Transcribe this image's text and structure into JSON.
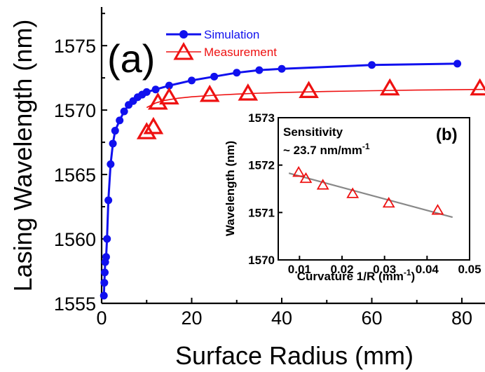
{
  "figure": {
    "panel_label": "(a)",
    "inset_panel_label": "(b)",
    "inset_annotation_line1": "Sensitivity",
    "inset_annotation_line2": "~ 23.7 nm/mm",
    "inset_annotation_sup": "-1",
    "inset_xlabel_main": "Curvature 1/R (mm",
    "inset_xlabel_sup": "-1",
    "inset_xlabel_end": ")"
  },
  "colors": {
    "simulation": "#1010ee",
    "measurement": "#ee1111",
    "fit": "#888888"
  },
  "chart_data": [
    {
      "type": "line",
      "xlabel": "Surface Radius (mm)",
      "ylabel": "Lasing Wavelength (nm)",
      "xlim": [
        0,
        90
      ],
      "ylim": [
        1555,
        1578
      ],
      "xticks": [
        "0",
        "20",
        "40",
        "60",
        "80"
      ],
      "xtick_values": [
        0,
        20,
        40,
        60,
        80
      ],
      "yticks": [
        "1555",
        "1560",
        "1565",
        "1570",
        "1575"
      ],
      "ytick_values": [
        1555,
        1560,
        1565,
        1570,
        1575
      ],
      "series": [
        {
          "name": "Simulation",
          "marker": "circle",
          "x": [
            0.5,
            0.6,
            0.7,
            0.8,
            1.0,
            1.2,
            1.5,
            2.0,
            2.5,
            3.0,
            4.0,
            5.0,
            6.0,
            7.0,
            8.0,
            9.0,
            10.0,
            12.0,
            15.0,
            20.0,
            25.0,
            30.0,
            35.0,
            40.0,
            60.0,
            79.0
          ],
          "y": [
            1555.6,
            1556.6,
            1557.4,
            1558.2,
            1558.6,
            1560.0,
            1563.0,
            1565.8,
            1567.4,
            1568.4,
            1569.2,
            1569.9,
            1570.4,
            1570.7,
            1571.0,
            1571.2,
            1571.4,
            1571.6,
            1571.9,
            1572.3,
            1572.6,
            1572.9,
            1573.1,
            1573.2,
            1573.5,
            1573.6
          ]
        },
        {
          "name": "Measurement",
          "marker": "triangle",
          "x": [
            10.0,
            11.5,
            12.5,
            15.0,
            24.0,
            32.5,
            46.0,
            64.0,
            84.0
          ],
          "y": [
            1568.3,
            1568.7,
            1570.6,
            1571.0,
            1571.2,
            1571.3,
            1571.5,
            1571.7,
            1571.7
          ],
          "fit_x": [
            10,
            12,
            14,
            17,
            20,
            25,
            30,
            35,
            40,
            50,
            60,
            70,
            80,
            90
          ],
          "fit_y": [
            1570.2,
            1570.55,
            1570.75,
            1570.92,
            1571.03,
            1571.15,
            1571.24,
            1571.31,
            1571.36,
            1571.44,
            1571.5,
            1571.55,
            1571.59,
            1571.62
          ]
        }
      ]
    },
    {
      "type": "scatter",
      "xlabel": "Curvature 1/R (mm-1)",
      "ylabel": "Wavelength (nm)",
      "xlim": [
        0.005,
        0.05
      ],
      "ylim": [
        1570,
        1573
      ],
      "xticks": [
        "0.01",
        "0.02",
        "0.03",
        "0.04",
        "0.05"
      ],
      "xtick_values": [
        0.01,
        0.02,
        0.03,
        0.04,
        0.05
      ],
      "yticks": [
        "1570",
        "1571",
        "1572",
        "1573"
      ],
      "ytick_values": [
        1570,
        1571,
        1572,
        1573
      ],
      "series": [
        {
          "name": "",
          "marker": "triangle",
          "x": [
            0.0098,
            0.0115,
            0.0155,
            0.0225,
            0.031,
            0.0425
          ],
          "y": [
            1571.85,
            1571.72,
            1571.58,
            1571.4,
            1571.2,
            1571.05
          ]
        }
      ],
      "fit_line": {
        "x": [
          0.0075,
          0.046
        ],
        "y": [
          1571.83,
          1570.9
        ]
      }
    }
  ]
}
